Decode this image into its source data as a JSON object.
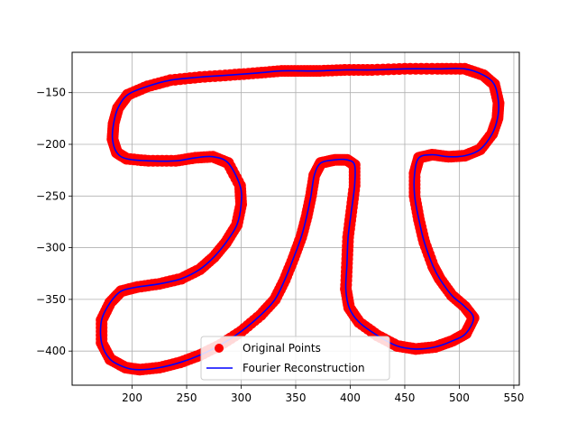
{
  "chart_data": {
    "type": "scatter",
    "title": "",
    "xlabel": "",
    "ylabel": "",
    "xlim": [
      145,
      555
    ],
    "ylim": [
      -433,
      -111
    ],
    "xticks": [
      200,
      250,
      300,
      350,
      400,
      450,
      500,
      550
    ],
    "yticks": [
      -150,
      -200,
      -250,
      -300,
      -350,
      -400
    ],
    "grid": true,
    "legend_position": "lower-center",
    "colors": {
      "points": "#ff0000",
      "line": "#0000ff",
      "grid": "#b0b0b0"
    },
    "series": [
      {
        "name": "Original Points",
        "kind": "scatter",
        "color": "#ff0000"
      },
      {
        "name": "Fourier Reconstruction",
        "kind": "line",
        "color": "#0000ff"
      }
    ],
    "points": [
      [
        207,
        -418
      ],
      [
        225,
        -416
      ],
      [
        244,
        -411
      ],
      [
        262,
        -404
      ],
      [
        281,
        -394
      ],
      [
        300,
        -381
      ],
      [
        318,
        -365
      ],
      [
        331,
        -350
      ],
      [
        340,
        -331
      ],
      [
        348,
        -310
      ],
      [
        355,
        -290
      ],
      [
        360,
        -270
      ],
      [
        364,
        -250
      ],
      [
        367,
        -230
      ],
      [
        373,
        -218
      ],
      [
        386,
        -215
      ],
      [
        397,
        -215
      ],
      [
        404,
        -220
      ],
      [
        404,
        -240
      ],
      [
        401,
        -265
      ],
      [
        398,
        -290
      ],
      [
        397,
        -315
      ],
      [
        396,
        -340
      ],
      [
        399,
        -358
      ],
      [
        408,
        -372
      ],
      [
        425,
        -385
      ],
      [
        443,
        -395
      ],
      [
        460,
        -398
      ],
      [
        478,
        -396
      ],
      [
        494,
        -390
      ],
      [
        506,
        -383
      ],
      [
        513,
        -368
      ],
      [
        505,
        -357
      ],
      [
        493,
        -346
      ],
      [
        482,
        -330
      ],
      [
        476,
        -318
      ],
      [
        468,
        -295
      ],
      [
        463,
        -273
      ],
      [
        459,
        -250
      ],
      [
        459,
        -228
      ],
      [
        463,
        -213
      ],
      [
        475,
        -210
      ],
      [
        490,
        -212
      ],
      [
        505,
        -211
      ],
      [
        519,
        -205
      ],
      [
        530,
        -190
      ],
      [
        535,
        -175
      ],
      [
        536,
        -160
      ],
      [
        532,
        -142
      ],
      [
        522,
        -133
      ],
      [
        505,
        -127
      ],
      [
        480,
        -127
      ],
      [
        450,
        -127
      ],
      [
        420,
        -128
      ],
      [
        395,
        -128
      ],
      [
        372,
        -129
      ],
      [
        355,
        -129
      ],
      [
        337,
        -129
      ],
      [
        315,
        -131
      ],
      [
        290,
        -133
      ],
      [
        262,
        -135
      ],
      [
        235,
        -138
      ],
      [
        214,
        -144
      ],
      [
        196,
        -152
      ],
      [
        187,
        -165
      ],
      [
        183,
        -180
      ],
      [
        182,
        -195
      ],
      [
        186,
        -208
      ],
      [
        195,
        -214
      ],
      [
        215,
        -216
      ],
      [
        240,
        -216
      ],
      [
        258,
        -213
      ],
      [
        274,
        -212
      ],
      [
        288,
        -218
      ],
      [
        299,
        -240
      ],
      [
        300,
        -258
      ],
      [
        296,
        -278
      ],
      [
        286,
        -295
      ],
      [
        275,
        -309
      ],
      [
        262,
        -321
      ],
      [
        245,
        -330
      ],
      [
        225,
        -335
      ],
      [
        205,
        -338
      ],
      [
        190,
        -342
      ],
      [
        180,
        -353
      ],
      [
        172,
        -370
      ],
      [
        172,
        -392
      ],
      [
        180,
        -408
      ],
      [
        194,
        -416
      ]
    ]
  },
  "legend": {
    "points_label": "Original Points",
    "line_label": "Fourier Reconstruction"
  }
}
